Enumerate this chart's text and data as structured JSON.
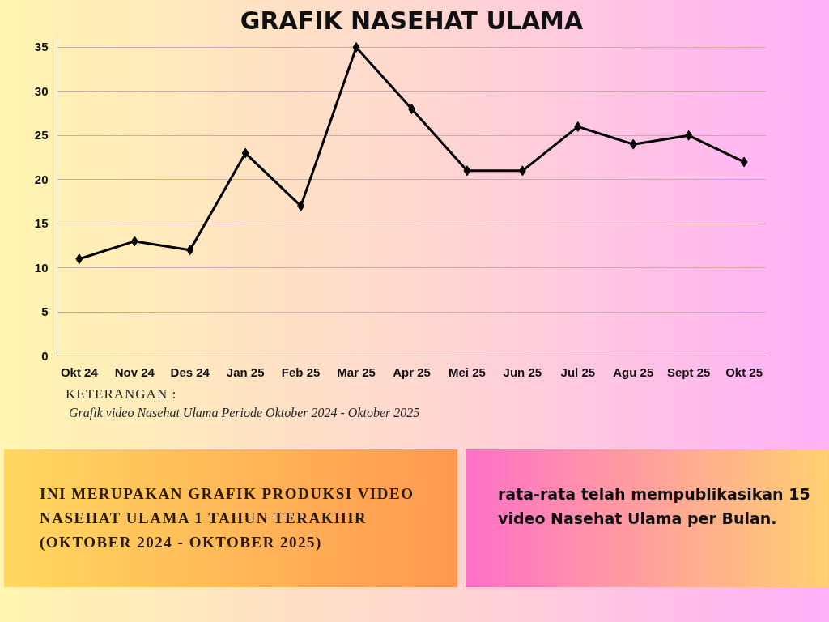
{
  "chart_data": {
    "type": "line",
    "title": "GRAFIK NASEHAT ULAMA",
    "categories": [
      "Okt 24",
      "Nov 24",
      "Des 24",
      "Jan 25",
      "Feb 25",
      "Mar 25",
      "Apr 25",
      "Mei 25",
      "Jun 25",
      "Jul 25",
      "Agu 25",
      "Sept 25",
      "Okt 25"
    ],
    "series": [
      {
        "color": "#000000",
        "values": [
          11,
          13,
          12,
          23,
          17,
          35,
          28,
          21,
          21,
          26,
          24,
          25,
          22
        ]
      }
    ],
    "ylim": [
      0,
      36
    ],
    "yticks": [
      0,
      5,
      10,
      15,
      20,
      25,
      30,
      35
    ],
    "grid": "y",
    "marker": "diamond",
    "line_style": "solid",
    "annotations": [
      "KETERANGAN :",
      "Grafik video Nasehat Ulama Periode Oktober 2024 - Oktober 2025",
      "INI MERUPAKAN GRAFIK PRODUKSI VIDEO NASEHAT ULAMA 1 TAHUN TERAKHIR (OKTOBER 2024 - OKTOBER 2025)",
      "rata-rata telah mempublikasikan 15 video Nasehat Ulama per Bulan."
    ]
  }
}
